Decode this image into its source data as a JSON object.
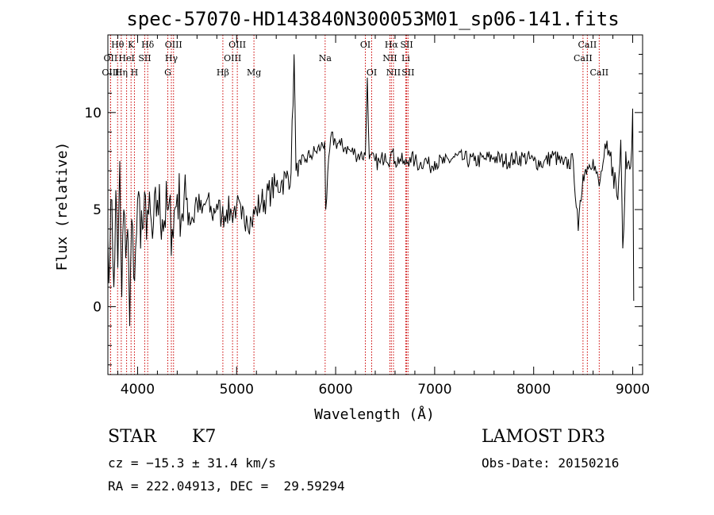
{
  "chart_data": {
    "type": "line",
    "title": "spec-57070-HD143840N300053M01_sp06-141.fits",
    "xlabel": "Wavelength (Å)",
    "ylabel": "Flux (relative)",
    "xlim": [
      3700,
      9100
    ],
    "ylim": [
      -3.5,
      14
    ],
    "xticks": [
      4000,
      5000,
      6000,
      7000,
      8000,
      9000
    ],
    "yticks": [
      0,
      5,
      10
    ],
    "x_minor_step": 200,
    "y_minor_step": 1,
    "series": [
      {
        "name": "spectrum",
        "x": [
          3700,
          3720,
          3740,
          3760,
          3780,
          3800,
          3820,
          3840,
          3860,
          3880,
          3900,
          3920,
          3940,
          3960,
          3980,
          4000,
          4050,
          4100,
          4150,
          4200,
          4250,
          4300,
          4350,
          4400,
          4450,
          4500,
          4550,
          4600,
          4650,
          4700,
          4750,
          4800,
          4850,
          4900,
          4950,
          5000,
          5050,
          5100,
          5150,
          5200,
          5250,
          5300,
          5350,
          5400,
          5450,
          5500,
          5550,
          5580,
          5600,
          5650,
          5700,
          5750,
          5800,
          5850,
          5890,
          5900,
          5950,
          6000,
          6050,
          6100,
          6150,
          6200,
          6250,
          6300,
          6320,
          6340,
          6400,
          6450,
          6500,
          6550,
          6563,
          6600,
          6650,
          6700,
          6750,
          6800,
          6850,
          6900,
          6950,
          7000,
          7100,
          7200,
          7300,
          7400,
          7500,
          7600,
          7700,
          7800,
          7900,
          8000,
          8100,
          8200,
          8300,
          8400,
          8450,
          8498,
          8542,
          8600,
          8662,
          8700,
          8750,
          8800,
          8850,
          8880,
          8900,
          8930,
          8960,
          8980,
          9000,
          9010
        ],
        "values": [
          3.5,
          2.5,
          5.5,
          1.0,
          6.0,
          2.0,
          7.5,
          0.5,
          5.0,
          2.5,
          4.0,
          -1.0,
          4.5,
          1.5,
          3.0,
          5.5,
          4.0,
          5.0,
          3.5,
          5.5,
          4.5,
          5.0,
          4.0,
          5.8,
          4.8,
          5.6,
          4.6,
          5.4,
          4.8,
          5.5,
          4.7,
          5.3,
          4.6,
          5.0,
          4.8,
          5.2,
          4.5,
          4.7,
          4.4,
          5.0,
          5.4,
          5.6,
          6.0,
          6.2,
          6.4,
          6.6,
          6.9,
          13.0,
          7.0,
          7.3,
          7.6,
          7.8,
          8.0,
          8.2,
          8.5,
          5.0,
          8.7,
          8.5,
          8.3,
          8.2,
          8.0,
          7.9,
          7.8,
          7.8,
          11.8,
          7.6,
          7.5,
          7.4,
          7.9,
          7.6,
          8.0,
          7.5,
          7.6,
          7.3,
          7.7,
          7.5,
          7.3,
          7.6,
          7.2,
          7.5,
          7.4,
          7.7,
          7.6,
          7.5,
          7.6,
          7.7,
          7.5,
          7.6,
          7.7,
          7.5,
          7.4,
          7.8,
          7.3,
          7.5,
          3.9,
          6.8,
          7.2,
          7.6,
          6.2,
          7.4,
          7.8,
          7.2,
          5.5,
          8.6,
          3.0,
          8.0,
          7.5,
          7.2,
          10.2,
          0.3
        ]
      }
    ],
    "line_markers": [
      {
        "name": "Hθ",
        "wavelength": 3798,
        "row": 1
      },
      {
        "name": "OII",
        "wavelength": 3727,
        "row": 2
      },
      {
        "name": "OIII",
        "wavelength": 3727,
        "row": 3
      },
      {
        "name": "K",
        "wavelength": 3934,
        "row": 1
      },
      {
        "name": "HeI",
        "wavelength": 3889,
        "row": 2
      },
      {
        "name": "Hη",
        "wavelength": 3835,
        "row": 3
      },
      {
        "name": "H",
        "wavelength": 3968,
        "row": 3
      },
      {
        "name": "SII",
        "wavelength": 4072,
        "row": 2
      },
      {
        "name": "Hδ",
        "wavelength": 4102,
        "row": 1
      },
      {
        "name": "OIII",
        "wavelength": 4363,
        "row": 1
      },
      {
        "name": "Hγ",
        "wavelength": 4341,
        "row": 2
      },
      {
        "name": "G",
        "wavelength": 4305,
        "row": 3
      },
      {
        "name": "OIII",
        "wavelength": 5007,
        "row": 1
      },
      {
        "name": "OIII",
        "wavelength": 4959,
        "row": 2
      },
      {
        "name": "Hβ",
        "wavelength": 4861,
        "row": 3
      },
      {
        "name": "Mg",
        "wavelength": 5175,
        "row": 3
      },
      {
        "name": "Na",
        "wavelength": 5894,
        "row": 2
      },
      {
        "name": "OI",
        "wavelength": 6300,
        "row": 1
      },
      {
        "name": "OI",
        "wavelength": 6364,
        "row": 3
      },
      {
        "name": "Hα",
        "wavelength": 6563,
        "row": 1
      },
      {
        "name": "NII",
        "wavelength": 6548,
        "row": 2
      },
      {
        "name": "NII",
        "wavelength": 6584,
        "row": 3
      },
      {
        "name": "SII",
        "wavelength": 6717,
        "row": 1
      },
      {
        "name": "Li",
        "wavelength": 6708,
        "row": 2
      },
      {
        "name": "SII",
        "wavelength": 6731,
        "row": 3
      },
      {
        "name": "CaII",
        "wavelength": 8542,
        "row": 1
      },
      {
        "name": "CaII",
        "wavelength": 8498,
        "row": 2
      },
      {
        "name": "CaII",
        "wavelength": 8662,
        "row": 3
      }
    ],
    "colors": {
      "spectrum": "#000000",
      "markers": "#cc0000",
      "axes": "#000000"
    }
  },
  "info": {
    "object_class": "STAR",
    "subclass": "K7",
    "survey": "LAMOST DR3",
    "redshift": "cz = −15.3 ± 31.4 km/s",
    "obs_date": "Obs-Date: 20150216",
    "coords": "RA = 222.04913, DEC =  29.59294"
  }
}
